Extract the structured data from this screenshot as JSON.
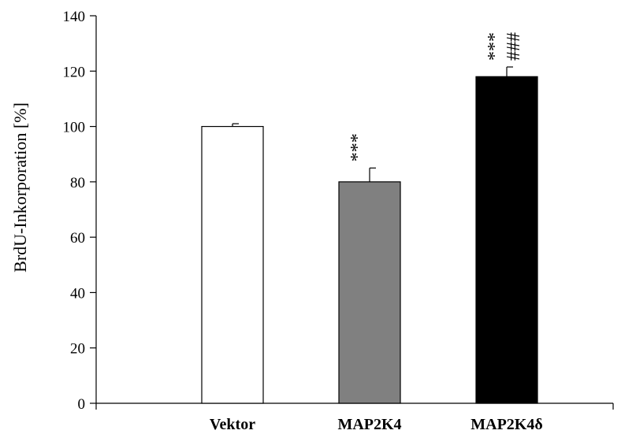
{
  "chart_data": {
    "type": "bar",
    "title": "",
    "xlabel": "",
    "ylabel": "BrdU-Inkorporation [%]",
    "ylim": [
      0,
      140
    ],
    "yticks": [
      0,
      20,
      40,
      60,
      80,
      100,
      120,
      140
    ],
    "grid": false,
    "legend": "none",
    "categories": [
      "Vektor",
      "MAP2K4",
      "MAP2K4δ"
    ],
    "values": [
      100,
      80,
      118
    ],
    "errors": [
      1,
      5,
      3.5
    ],
    "colors": [
      "#ffffff",
      "#808080",
      "#000000"
    ],
    "annotations": [
      {
        "category": "Vektor",
        "lines": []
      },
      {
        "category": "MAP2K4",
        "lines": [
          "***"
        ]
      },
      {
        "category": "MAP2K4δ",
        "lines": [
          "***",
          "###"
        ]
      }
    ]
  }
}
